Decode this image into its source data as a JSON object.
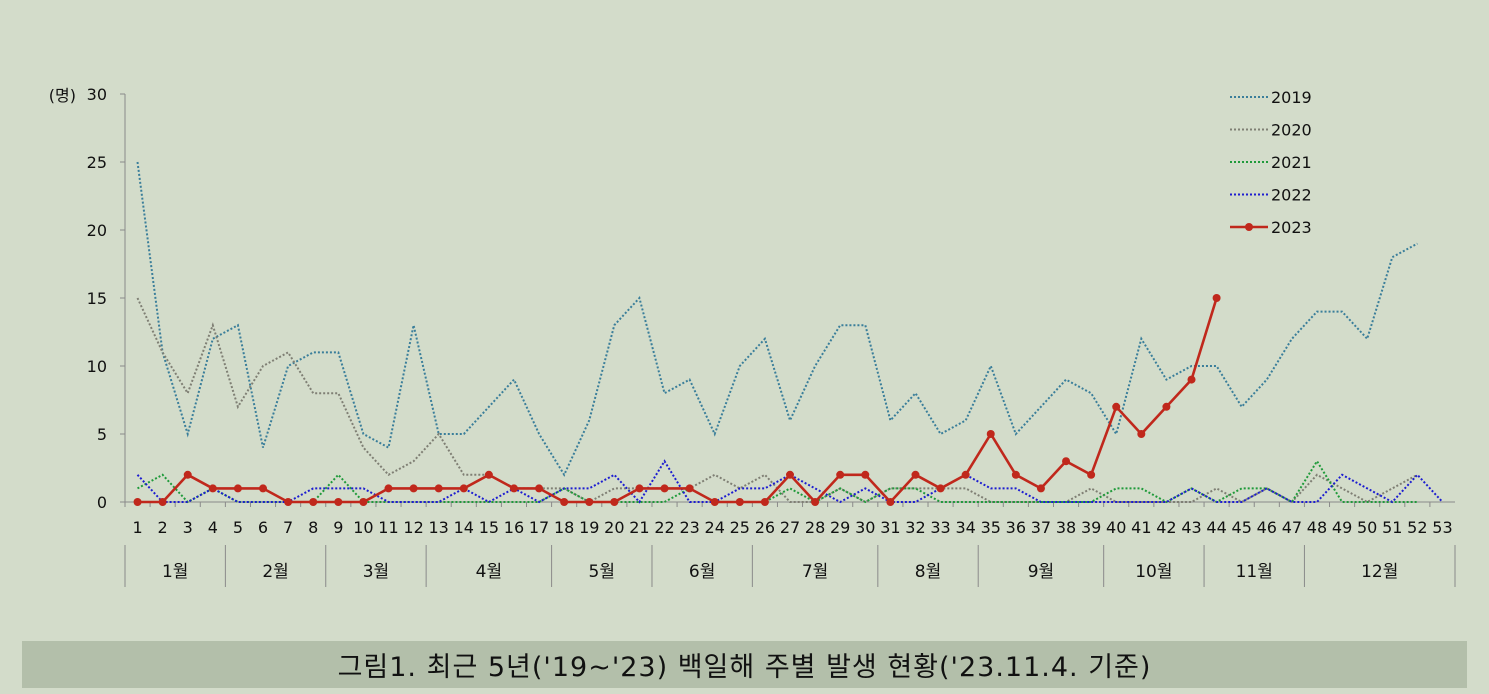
{
  "chart_data": {
    "type": "line",
    "ylabel": "(명)",
    "ylim": [
      0,
      30
    ],
    "yticks": [
      0,
      5,
      10,
      15,
      20,
      25,
      30
    ],
    "x": [
      1,
      2,
      3,
      4,
      5,
      6,
      7,
      8,
      9,
      10,
      11,
      12,
      13,
      14,
      15,
      16,
      17,
      18,
      19,
      20,
      21,
      22,
      23,
      24,
      25,
      26,
      27,
      28,
      29,
      30,
      31,
      32,
      33,
      34,
      35,
      36,
      37,
      38,
      39,
      40,
      41,
      42,
      43,
      44,
      45,
      46,
      47,
      48,
      49,
      50,
      51,
      52,
      53
    ],
    "months": [
      {
        "label": "1월",
        "from": 1,
        "to": 4
      },
      {
        "label": "2월",
        "from": 5,
        "to": 8
      },
      {
        "label": "3월",
        "from": 9,
        "to": 12
      },
      {
        "label": "4월",
        "from": 13,
        "to": 17
      },
      {
        "label": "5월",
        "from": 18,
        "to": 21
      },
      {
        "label": "6월",
        "from": 22,
        "to": 25
      },
      {
        "label": "7월",
        "from": 26,
        "to": 30
      },
      {
        "label": "8월",
        "from": 31,
        "to": 34
      },
      {
        "label": "9월",
        "from": 35,
        "to": 39
      },
      {
        "label": "10월",
        "from": 40,
        "to": 43
      },
      {
        "label": "11월",
        "from": 44,
        "to": 47
      },
      {
        "label": "12월",
        "from": 48,
        "to": 53
      }
    ],
    "series": [
      {
        "name": "2019",
        "color": "#3a7e9a",
        "style": "dotted",
        "values": [
          25,
          11,
          5,
          12,
          13,
          4,
          10,
          11,
          11,
          5,
          4,
          13,
          5,
          5,
          7,
          9,
          5,
          2,
          6,
          13,
          15,
          8,
          9,
          5,
          10,
          12,
          6,
          10,
          13,
          13,
          6,
          8,
          5,
          6,
          10,
          5,
          7,
          9,
          8,
          5,
          12,
          9,
          10,
          10,
          7,
          9,
          12,
          14,
          14,
          12,
          18,
          19,
          null
        ]
      },
      {
        "name": "2020",
        "color": "#7f7f74",
        "style": "dotted",
        "values": [
          15,
          11,
          8,
          13,
          7,
          10,
          11,
          8,
          8,
          4,
          2,
          3,
          5,
          2,
          2,
          1,
          1,
          1,
          0,
          1,
          1,
          1,
          1,
          2,
          1,
          2,
          0,
          0,
          1,
          0,
          1,
          1,
          1,
          1,
          0,
          0,
          0,
          0,
          1,
          0,
          0,
          0,
          0,
          1,
          0,
          1,
          0,
          2,
          1,
          0,
          1,
          2,
          null
        ]
      },
      {
        "name": "2021",
        "color": "#1f9a3a",
        "style": "dotted",
        "values": [
          1,
          2,
          0,
          1,
          0,
          0,
          0,
          0,
          2,
          0,
          0,
          0,
          0,
          0,
          0,
          0,
          0,
          1,
          0,
          0,
          0,
          0,
          1,
          0,
          0,
          0,
          1,
          0,
          1,
          0,
          1,
          1,
          0,
          0,
          0,
          0,
          0,
          0,
          0,
          1,
          1,
          0,
          1,
          0,
          1,
          1,
          0,
          3,
          0,
          0,
          0,
          0,
          null
        ]
      },
      {
        "name": "2022",
        "color": "#1d1dd0",
        "style": "dotted",
        "values": [
          2,
          0,
          0,
          1,
          0,
          0,
          0,
          1,
          1,
          1,
          0,
          0,
          0,
          1,
          0,
          1,
          0,
          1,
          1,
          2,
          0,
          3,
          0,
          0,
          1,
          1,
          2,
          1,
          0,
          1,
          0,
          0,
          1,
          2,
          1,
          1,
          0,
          0,
          0,
          0,
          0,
          0,
          1,
          0,
          0,
          1,
          0,
          0,
          2,
          1,
          0,
          2,
          0
        ]
      },
      {
        "name": "2023",
        "color": "#c0281c",
        "style": "solid-marker",
        "values": [
          0,
          0,
          2,
          1,
          1,
          1,
          0,
          0,
          0,
          0,
          1,
          1,
          1,
          1,
          2,
          1,
          1,
          0,
          0,
          0,
          1,
          1,
          1,
          0,
          0,
          0,
          2,
          0,
          2,
          2,
          0,
          2,
          1,
          2,
          5,
          2,
          1,
          3,
          2,
          7,
          5,
          7,
          9,
          15,
          null,
          null,
          null,
          null,
          null,
          null,
          null,
          null,
          null
        ]
      }
    ]
  },
  "caption": "그림1. 최근 5년('19~'23) 백일해 주별 발생 현황('23.11.4. 기준)"
}
